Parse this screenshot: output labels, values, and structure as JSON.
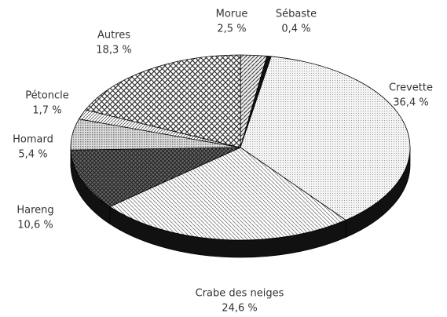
{
  "chart_data": {
    "type": "pie",
    "categories": [
      "Morue",
      "Sébaste",
      "Crevette",
      "Crabe des neiges",
      "Hareng",
      "Homard",
      "Pétoncle",
      "Autres"
    ],
    "values": [
      2.5,
      0.4,
      36.4,
      24.6,
      10.6,
      5.4,
      1.7,
      18.3
    ],
    "value_labels": [
      "2,5 %",
      "0,4 %",
      "36,4 %",
      "24,6 %",
      "10,6 %",
      "5,4 %",
      "1,7 %",
      "18,3 %"
    ]
  }
}
